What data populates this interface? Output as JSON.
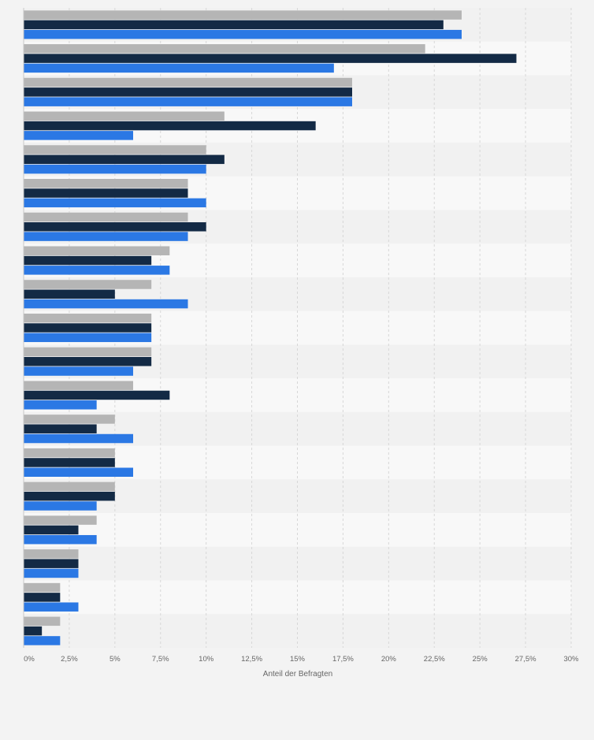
{
  "chart_data": {
    "type": "bar",
    "orientation": "horizontal",
    "title": "",
    "xlabel": "Anteil der Befragten",
    "ylabel": "",
    "xlim": [
      0,
      30
    ],
    "x_ticks": [
      "0%",
      "2,5%",
      "5%",
      "7,5%",
      "10%",
      "12,5%",
      "15%",
      "17,5%",
      "20%",
      "22,5%",
      "25%",
      "27,5%",
      "30%"
    ],
    "grid": true,
    "legend": "none",
    "categories": [
      "",
      "",
      "",
      "",
      "",
      "",
      "",
      "",
      "",
      "",
      "",
      "",
      "",
      "",
      "",
      "",
      "",
      "",
      ""
    ],
    "series": [
      {
        "color": "#b5b5b5",
        "values": [
          24,
          22,
          18,
          11,
          10,
          9,
          9,
          8,
          7,
          7,
          7,
          6,
          5,
          5,
          5,
          4,
          3,
          2,
          2
        ]
      },
      {
        "color": "#132a45",
        "values": [
          23,
          27,
          18,
          16,
          11,
          9,
          10,
          7,
          5,
          7,
          7,
          8,
          4,
          5,
          5,
          3,
          3,
          2,
          1
        ]
      },
      {
        "color": "#2b78e4",
        "values": [
          24,
          17,
          18,
          6,
          10,
          10,
          9,
          8,
          9,
          7,
          6,
          4,
          6,
          6,
          4,
          4,
          3,
          3,
          2
        ]
      }
    ]
  }
}
